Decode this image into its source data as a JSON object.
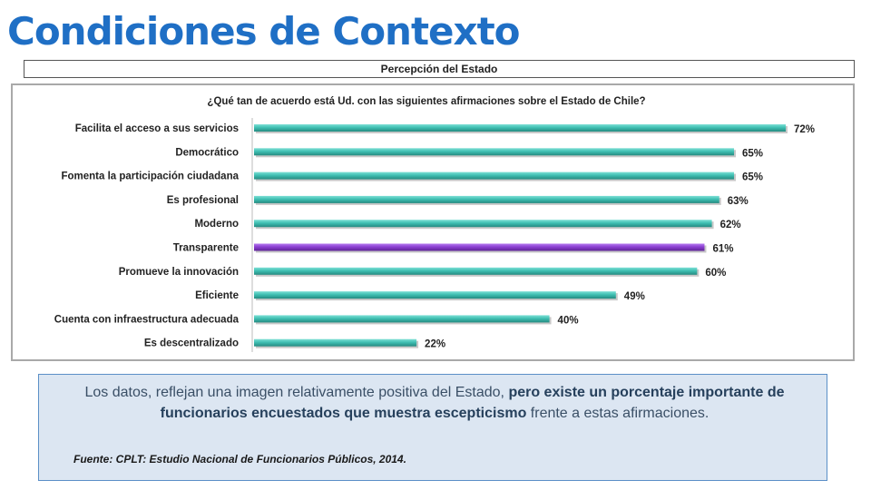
{
  "slide": {
    "title": "Condiciones de Contexto",
    "subtitle": "Percepción del Estado"
  },
  "summary": {
    "part1": "Los datos, reflejan una imagen relativamente positiva del Estado, ",
    "part2": "pero existe un porcentaje importante de funcionarios encuestados que muestra escepticismo",
    "part3": " frente a estas afirmaciones.",
    "source": "Fuente: CPLT: Estudio Nacional de Funcionarios  Públicos, 2014."
  },
  "colors": {
    "title": "#1f6fc5",
    "bar": "#3fbfb2",
    "bar_highlight": "#8b3fd1"
  },
  "chart_data": {
    "type": "bar",
    "orientation": "horizontal",
    "title": "¿Qué tan de acuerdo está Ud. con las siguientes afirmaciones sobre el Estado de Chile?",
    "categories": [
      "Facilita el acceso a sus servicios",
      "Democrático",
      "Fomenta la participación ciudadana",
      "Es profesional",
      "Moderno",
      "Transparente",
      "Promueve la innovación",
      "Eficiente",
      "Cuenta con infraestructura adecuada",
      "Es descentralizado"
    ],
    "values": [
      72,
      65,
      65,
      63,
      62,
      61,
      60,
      49,
      40,
      22
    ],
    "labels": [
      "72%",
      "65%",
      "65%",
      "63%",
      "62%",
      "61%",
      "60%",
      "49%",
      "40%",
      "22%"
    ],
    "highlight_index": 5,
    "unit": "%",
    "xlim": [
      0,
      72
    ],
    "grid": false,
    "legend": "none"
  }
}
